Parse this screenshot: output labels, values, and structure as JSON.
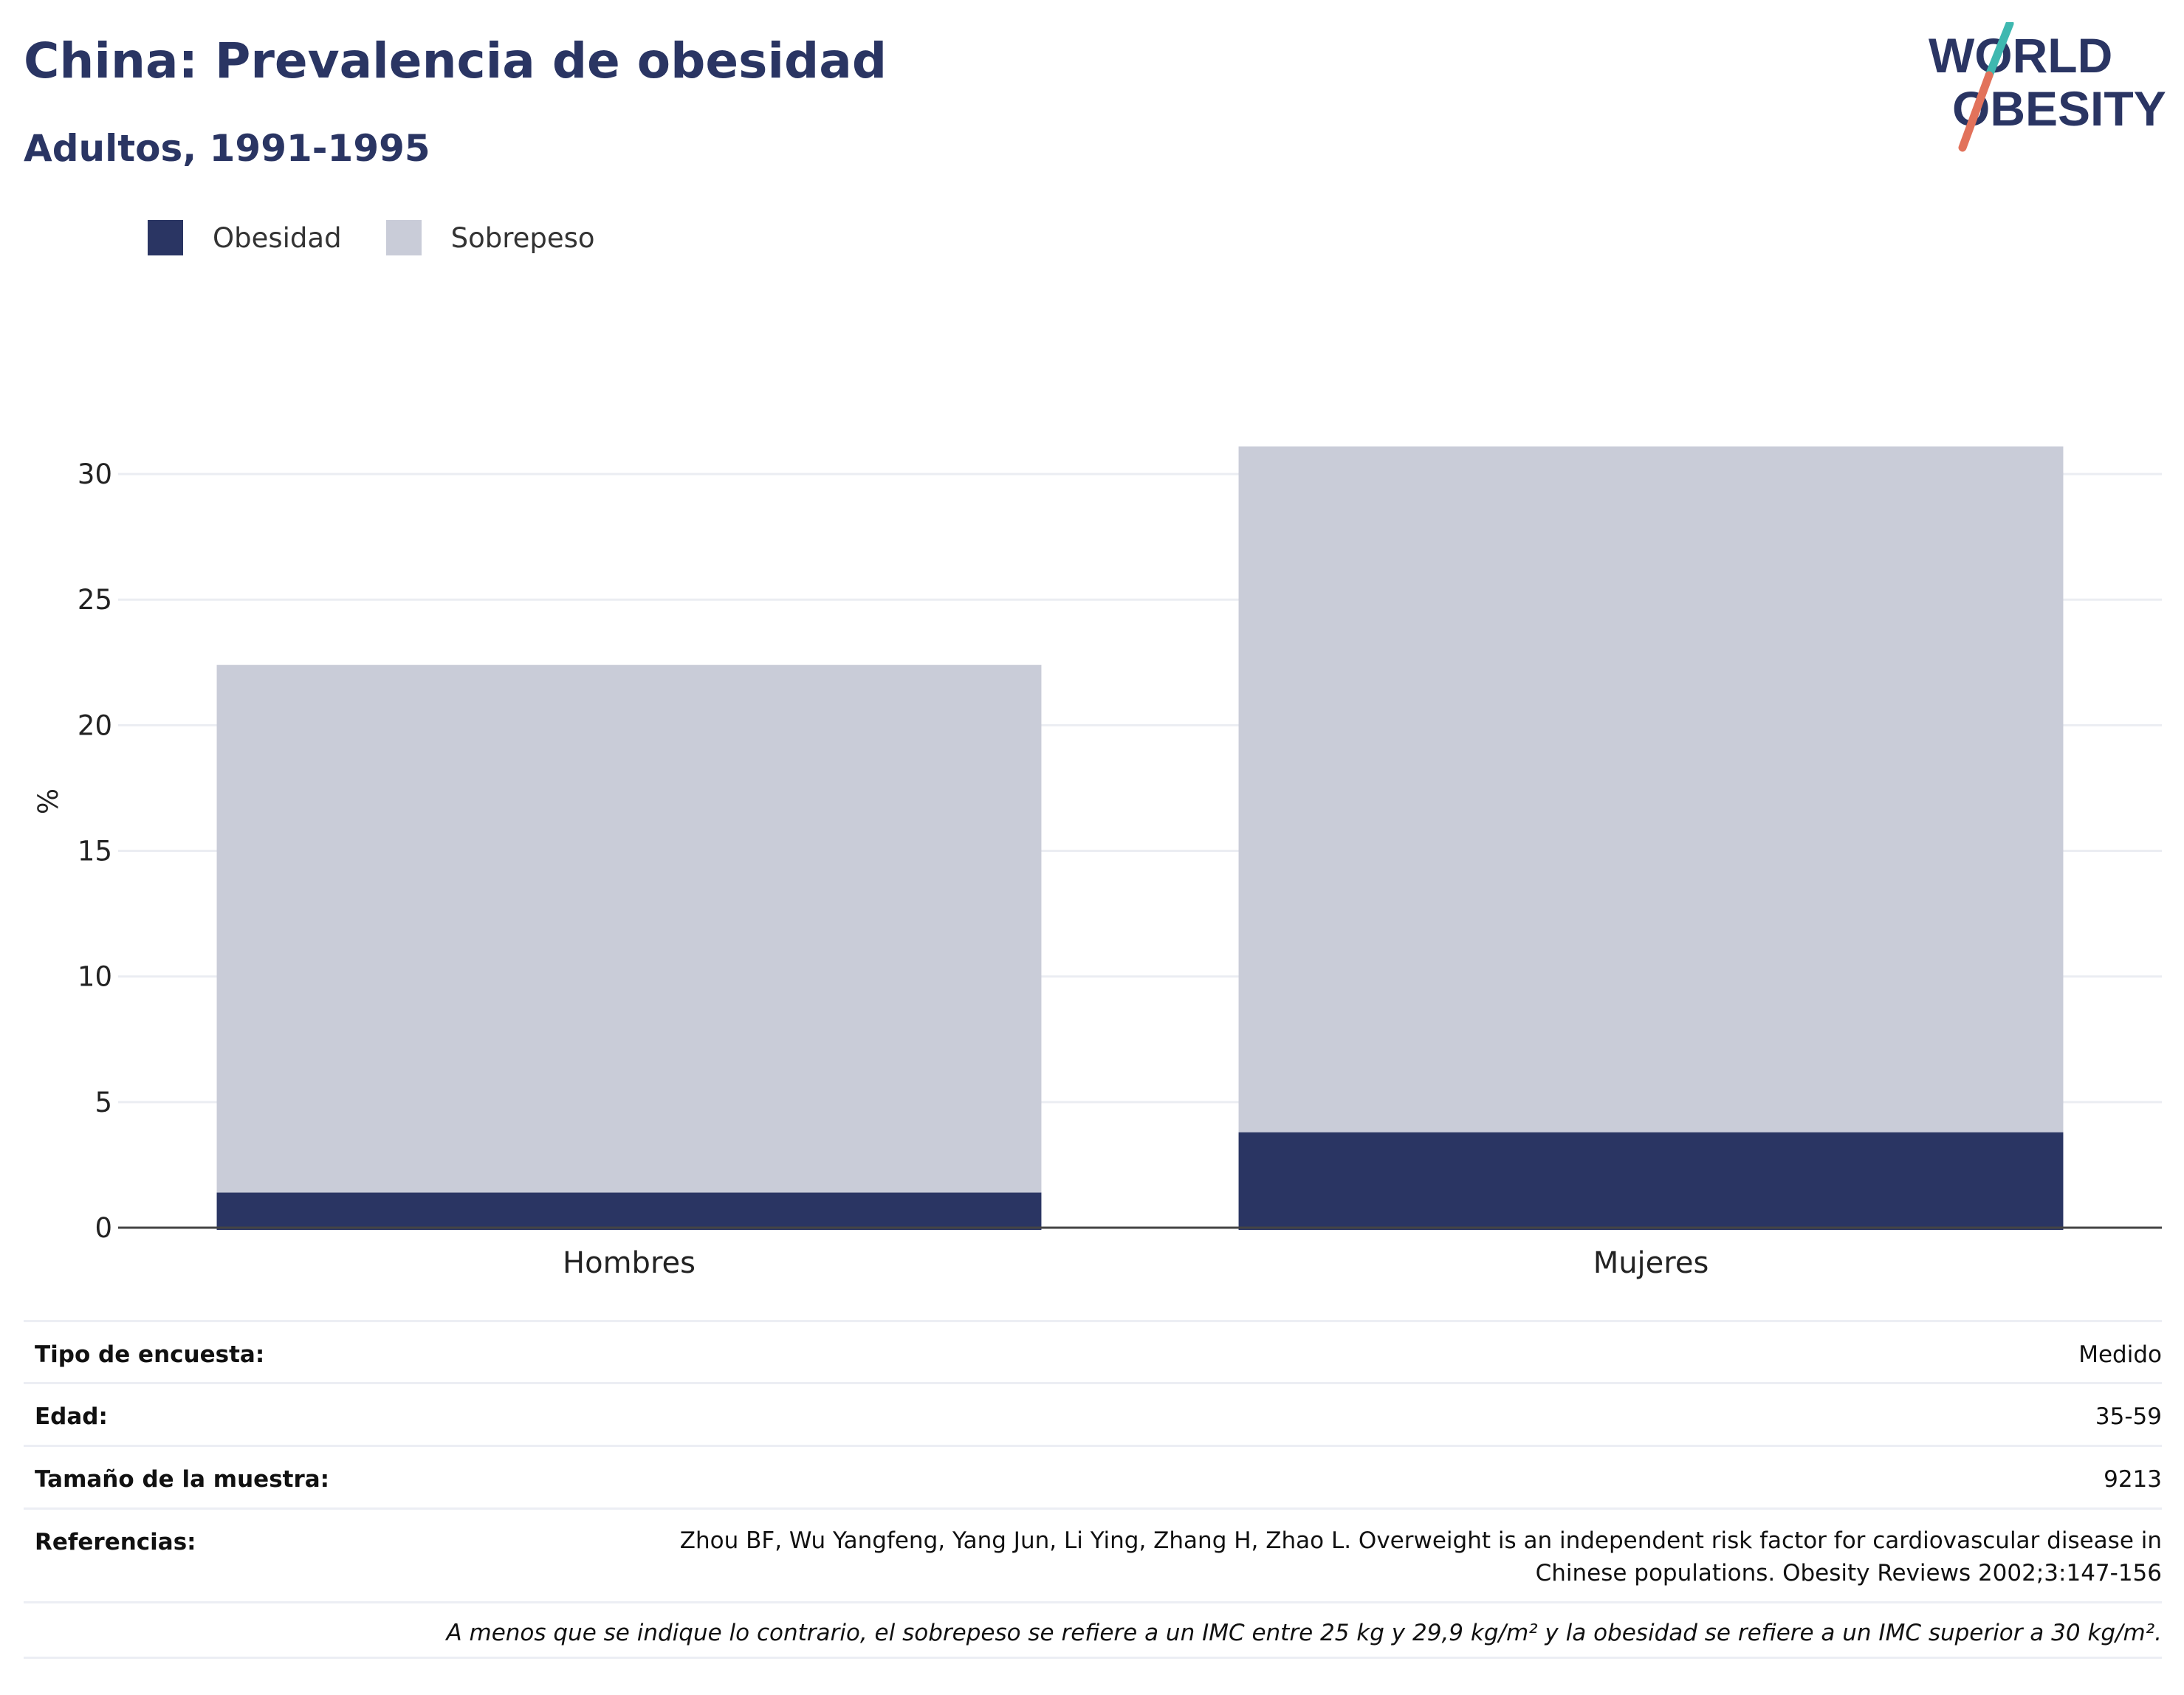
{
  "header": {
    "title": "China: Prevalencia de obesidad",
    "subtitle": "Adultos, 1991-1995"
  },
  "logo": {
    "line1": "WORLD",
    "line2": "OBESITY",
    "colors": {
      "text": "#2a3563",
      "slash_top": "#3fb8b0",
      "slash_bottom": "#e2725b"
    }
  },
  "legend": {
    "items": [
      {
        "label": "Obesidad",
        "color": "#2a3563"
      },
      {
        "label": "Sobrepeso",
        "color": "#c9ccd8"
      }
    ]
  },
  "chart_data": {
    "type": "bar",
    "stacked": true,
    "categories": [
      "Hombres",
      "Mujeres"
    ],
    "series": [
      {
        "name": "Obesidad",
        "color": "#2a3563",
        "values": [
          1.4,
          3.8
        ]
      },
      {
        "name": "Sobrepeso",
        "color": "#c9ccd8",
        "values": [
          21.0,
          27.3
        ]
      }
    ],
    "ylabel": "%",
    "yticks": [
      0,
      5,
      10,
      15,
      20,
      25,
      30
    ],
    "ylim": [
      0,
      33
    ],
    "grid": true,
    "legend_position": "top-left"
  },
  "meta": {
    "survey_type": {
      "label": "Tipo de encuesta:",
      "value": "Medido"
    },
    "age": {
      "label": "Edad:",
      "value": "35-59"
    },
    "sample_size": {
      "label": "Tamaño de la muestra:",
      "value": "9213"
    },
    "references": {
      "label": "Referencias:",
      "value": "Zhou BF, Wu Yangfeng, Yang Jun, Li Ying, Zhang H, Zhao L. Overweight is an independent risk factor for cardiovascular disease in Chinese populations. Obesity Reviews 2002;3:147-156"
    },
    "note": "A menos que se indique lo contrario, el sobrepeso se refiere a un IMC entre 25 kg y 29,9 kg/m² y la obesidad se refiere a un IMC superior a 30 kg/m²."
  }
}
